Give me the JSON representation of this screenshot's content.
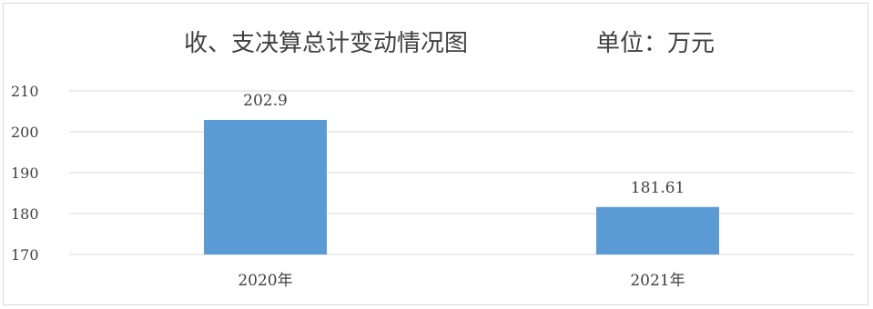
{
  "chart_data": {
    "type": "bar",
    "title": "收、支决算总计变动情况图",
    "unit_label": "单位：万元",
    "categories": [
      "2020年",
      "2021年"
    ],
    "values": [
      202.9,
      181.61
    ],
    "value_labels": [
      "202.9",
      "181.61"
    ],
    "yticks": [
      170,
      180,
      190,
      200,
      210
    ],
    "ylim": [
      170,
      210
    ],
    "xlabel": "",
    "ylabel": "",
    "grid": true,
    "legend": "none",
    "bar_color": "#5B9BD5"
  }
}
